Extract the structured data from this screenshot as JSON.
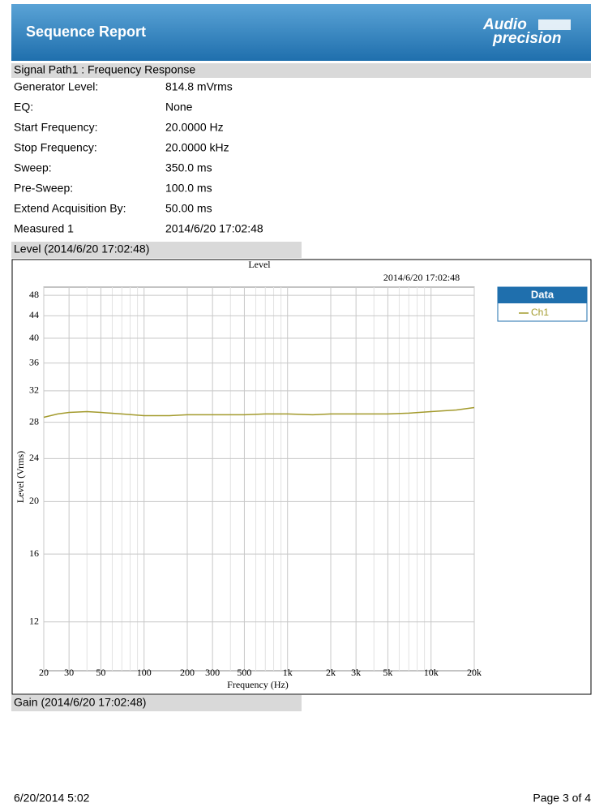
{
  "header": {
    "title": "Sequence Report",
    "logo_top": "Audio",
    "logo_bottom": "precision"
  },
  "section": {
    "title": "Signal Path1 : Frequency Response",
    "rows": [
      [
        "Generator Level:",
        "814.8 mVrms"
      ],
      [
        "EQ:",
        "None"
      ],
      [
        "Start Frequency:",
        "20.0000 Hz"
      ],
      [
        "Stop Frequency:",
        "20.0000 kHz"
      ],
      [
        "Sweep:",
        "350.0 ms"
      ],
      [
        "Pre-Sweep:",
        "100.0 ms"
      ],
      [
        "Extend Acquisition By:",
        "50.00 ms"
      ],
      [
        "Measured 1",
        "2014/6/20 17:02:48"
      ]
    ]
  },
  "level_title": "Level (2014/6/20 17:02:48)",
  "chart_data": {
    "type": "line",
    "title": "Level",
    "subtitle": "2014/6/20 17:02:48",
    "watermark": "AP",
    "x_label": "Frequency (Hz)",
    "y_label": "Level (Vrms)",
    "log_x": true,
    "log_y": true,
    "grid": true,
    "legend_title": "Data",
    "legend": "right",
    "x": [
      20,
      25,
      30,
      40,
      50,
      70,
      100,
      150,
      200,
      300,
      500,
      700,
      1000,
      1500,
      2000,
      3000,
      5000,
      7000,
      10000,
      15000,
      20000
    ],
    "series": [
      {
        "name": "Ch1",
        "color": "#a39a2c",
        "values": [
          28.6,
          29.0,
          29.2,
          29.3,
          29.2,
          29.0,
          28.8,
          28.8,
          28.9,
          28.9,
          28.9,
          29.0,
          29.0,
          28.9,
          29.0,
          29.0,
          29.0,
          29.1,
          29.3,
          29.5,
          29.8
        ]
      }
    ],
    "xlim": [
      20,
      20000
    ],
    "ylim": [
      9.75,
      49.7
    ],
    "xticks": [
      20,
      30,
      50,
      100,
      200,
      300,
      500,
      {
        "value": 1000,
        "label": "1k"
      },
      {
        "value": 2000,
        "label": "2k"
      },
      {
        "value": 3000,
        "label": "3k"
      },
      {
        "value": 5000,
        "label": "5k"
      },
      {
        "value": 10000,
        "label": "10k"
      },
      {
        "value": 20000,
        "label": "20k"
      }
    ],
    "xminorticks": [
      40,
      60,
      70,
      80,
      90,
      400,
      600,
      700,
      800,
      900,
      4000,
      6000,
      7000,
      8000,
      9000
    ],
    "yticks": [
      12,
      16,
      20,
      24,
      28,
      32,
      36,
      40,
      44,
      48
    ]
  },
  "gain_title": "Gain (2014/6/20 17:02:48)",
  "footer": {
    "date": "6/20/2014 5:02",
    "page": "Page 3 of 4"
  }
}
